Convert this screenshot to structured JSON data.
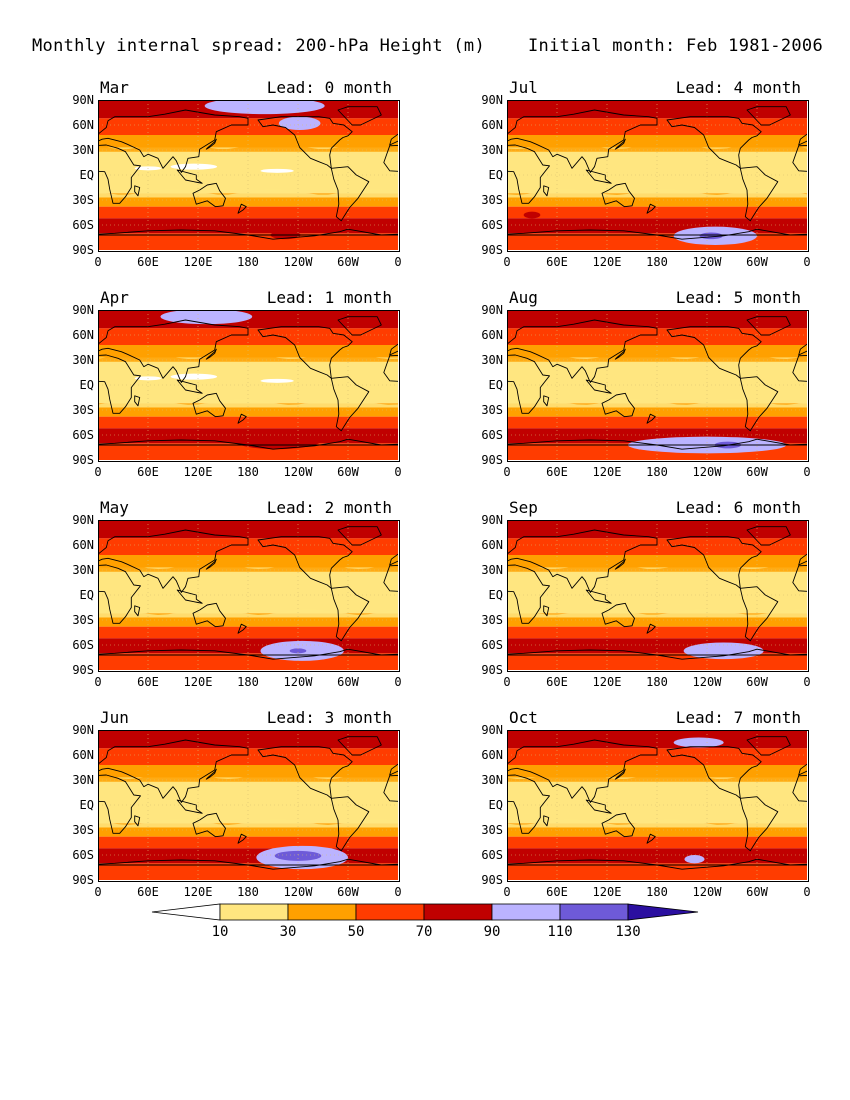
{
  "header": {
    "title": "Monthly internal spread: 200-hPa Height (m)",
    "initial": "Initial month: Feb 1981-2006"
  },
  "palette": {
    "white": "#ffffff",
    "c10": "#ffe680",
    "c30": "#ffa000",
    "c50": "#ff3c00",
    "c70": "#c00000",
    "c90": "#bbb3ff",
    "c110": "#6e5ad8",
    "c130": "#2b0fa0",
    "land": "#000000"
  },
  "axes": {
    "lat_labels": [
      "90N",
      "60N",
      "30N",
      "EQ",
      "30S",
      "60S",
      "90S"
    ],
    "lon_labels": [
      "0",
      "60E",
      "120E",
      "180",
      "120W",
      "60W",
      "0"
    ]
  },
  "panels": [
    {
      "month": "Mar",
      "lead": "Lead: 0 month",
      "lows": true,
      "blobs": [
        {
          "lat": 83,
          "lon": 200,
          "w": 72,
          "h": 10,
          "c": "c90"
        },
        {
          "lat": 62,
          "lon": 242,
          "w": 25,
          "h": 8,
          "c": "c90"
        },
        {
          "lat": -72,
          "lon": 225,
          "w": 18,
          "h": 5,
          "c": "c70"
        }
      ]
    },
    {
      "month": "Jul",
      "lead": "Lead: 4 month",
      "lows": false,
      "blobs": [
        {
          "lat": -73,
          "lon": 250,
          "w": 50,
          "h": 11,
          "c": "c90"
        },
        {
          "lat": -73,
          "lon": 245,
          "w": 14,
          "h": 4,
          "c": "c110"
        },
        {
          "lat": -48,
          "lon": 30,
          "w": 10,
          "h": 4,
          "c": "c70"
        }
      ]
    },
    {
      "month": "Apr",
      "lead": "Lead: 1 month",
      "lows": true,
      "blobs": [
        {
          "lat": 82,
          "lon": 130,
          "w": 55,
          "h": 9,
          "c": "c90"
        },
        {
          "lat": -70,
          "lon": 240,
          "w": 16,
          "h": 5,
          "c": "c90"
        },
        {
          "lat": -65,
          "lon": 215,
          "w": 55,
          "h": 12,
          "c": "c70"
        }
      ]
    },
    {
      "month": "Aug",
      "lead": "Lead: 5 month",
      "lows": false,
      "blobs": [
        {
          "lat": -72,
          "lon": 240,
          "w": 95,
          "h": 10,
          "c": "c90"
        },
        {
          "lat": -72,
          "lon": 265,
          "w": 16,
          "h": 4,
          "c": "c110"
        }
      ]
    },
    {
      "month": "May",
      "lead": "Lead: 2 month",
      "lows": false,
      "blobs": [
        {
          "lat": -67,
          "lon": 245,
          "w": 50,
          "h": 12,
          "c": "c90"
        },
        {
          "lat": -67,
          "lon": 240,
          "w": 10,
          "h": 3,
          "c": "c110"
        }
      ]
    },
    {
      "month": "Sep",
      "lead": "Lead: 6 month",
      "lows": false,
      "blobs": [
        {
          "lat": -67,
          "lon": 260,
          "w": 48,
          "h": 10,
          "c": "c90"
        }
      ]
    },
    {
      "month": "Jun",
      "lead": "Lead: 3 month",
      "lows": false,
      "blobs": [
        {
          "lat": -63,
          "lon": 245,
          "w": 55,
          "h": 14,
          "c": "c90"
        },
        {
          "lat": -61,
          "lon": 240,
          "w": 28,
          "h": 6,
          "c": "c110"
        }
      ]
    },
    {
      "month": "Oct",
      "lead": "Lead: 7 month",
      "lows": false,
      "blobs": [
        {
          "lat": -65,
          "lon": 225,
          "w": 12,
          "h": 5,
          "c": "c90"
        },
        {
          "lat": 75,
          "lon": 230,
          "w": 30,
          "h": 6,
          "c": "c90"
        }
      ]
    }
  ],
  "colorbar": {
    "labels": [
      "10",
      "30",
      "50",
      "70",
      "90",
      "110",
      "130"
    ],
    "bands": [
      "white",
      "c10",
      "c30",
      "c50",
      "c70",
      "c90",
      "c110",
      "c130"
    ]
  }
}
